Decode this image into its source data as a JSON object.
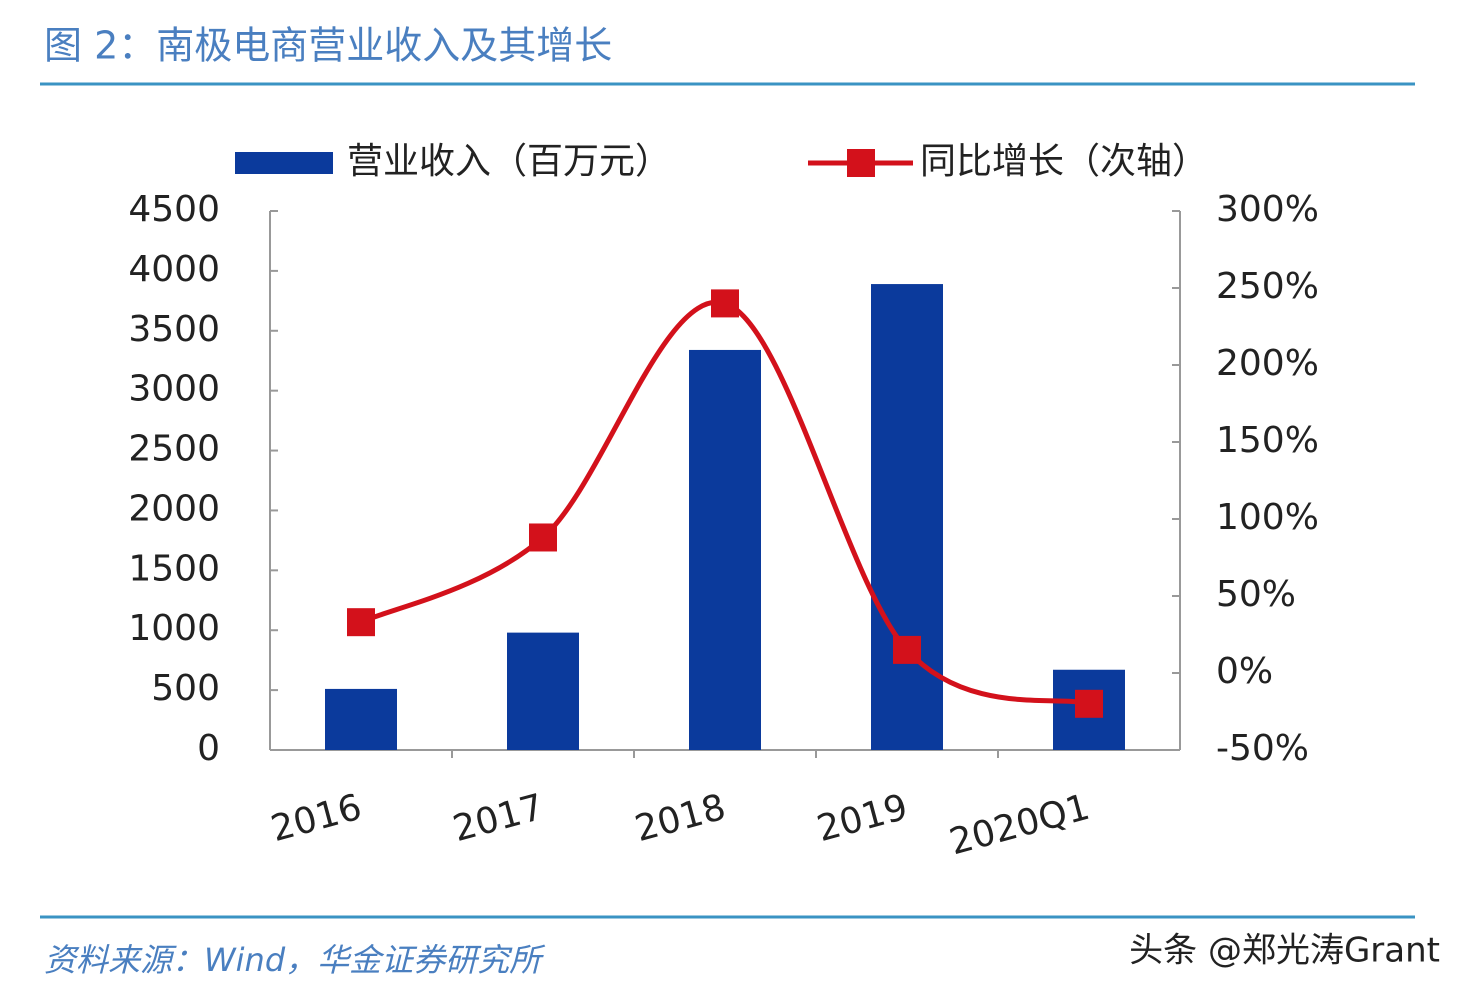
{
  "title": "图 2：南极电商营业收入及其增长",
  "source": "资料来源：Wind，华金证券研究所",
  "watermark": "头条 @郑光涛Grant",
  "chart_data": {
    "type": "bar-line",
    "categories": [
      "2016",
      "2017",
      "2018",
      "2019",
      "2020Q1"
    ],
    "series": [
      {
        "name": "营业收入（百万元）",
        "type": "bar",
        "color": "#0b3a9c",
        "values": [
          510,
          980,
          3340,
          3890,
          670
        ]
      },
      {
        "name": "同比增长（次轴）",
        "type": "line",
        "axis": "y2",
        "color": "#d3111b",
        "values": [
          33,
          88,
          240,
          15,
          -20
        ]
      }
    ],
    "ylim": [
      0,
      4500
    ],
    "yticks": [
      0,
      500,
      1000,
      1500,
      2000,
      2500,
      3000,
      3500,
      4000,
      4500
    ],
    "y2lim": [
      -50,
      300
    ],
    "y2ticks": [
      {
        "value": -50,
        "label": "-50%"
      },
      {
        "value": 0,
        "label": "0%"
      },
      {
        "value": 50,
        "label": "50%"
      },
      {
        "value": 100,
        "label": "100%"
      },
      {
        "value": 150,
        "label": "150%"
      },
      {
        "value": 200,
        "label": "200%"
      },
      {
        "value": 250,
        "label": "250%"
      },
      {
        "value": 300,
        "label": "300%"
      }
    ],
    "legend": "top"
  }
}
